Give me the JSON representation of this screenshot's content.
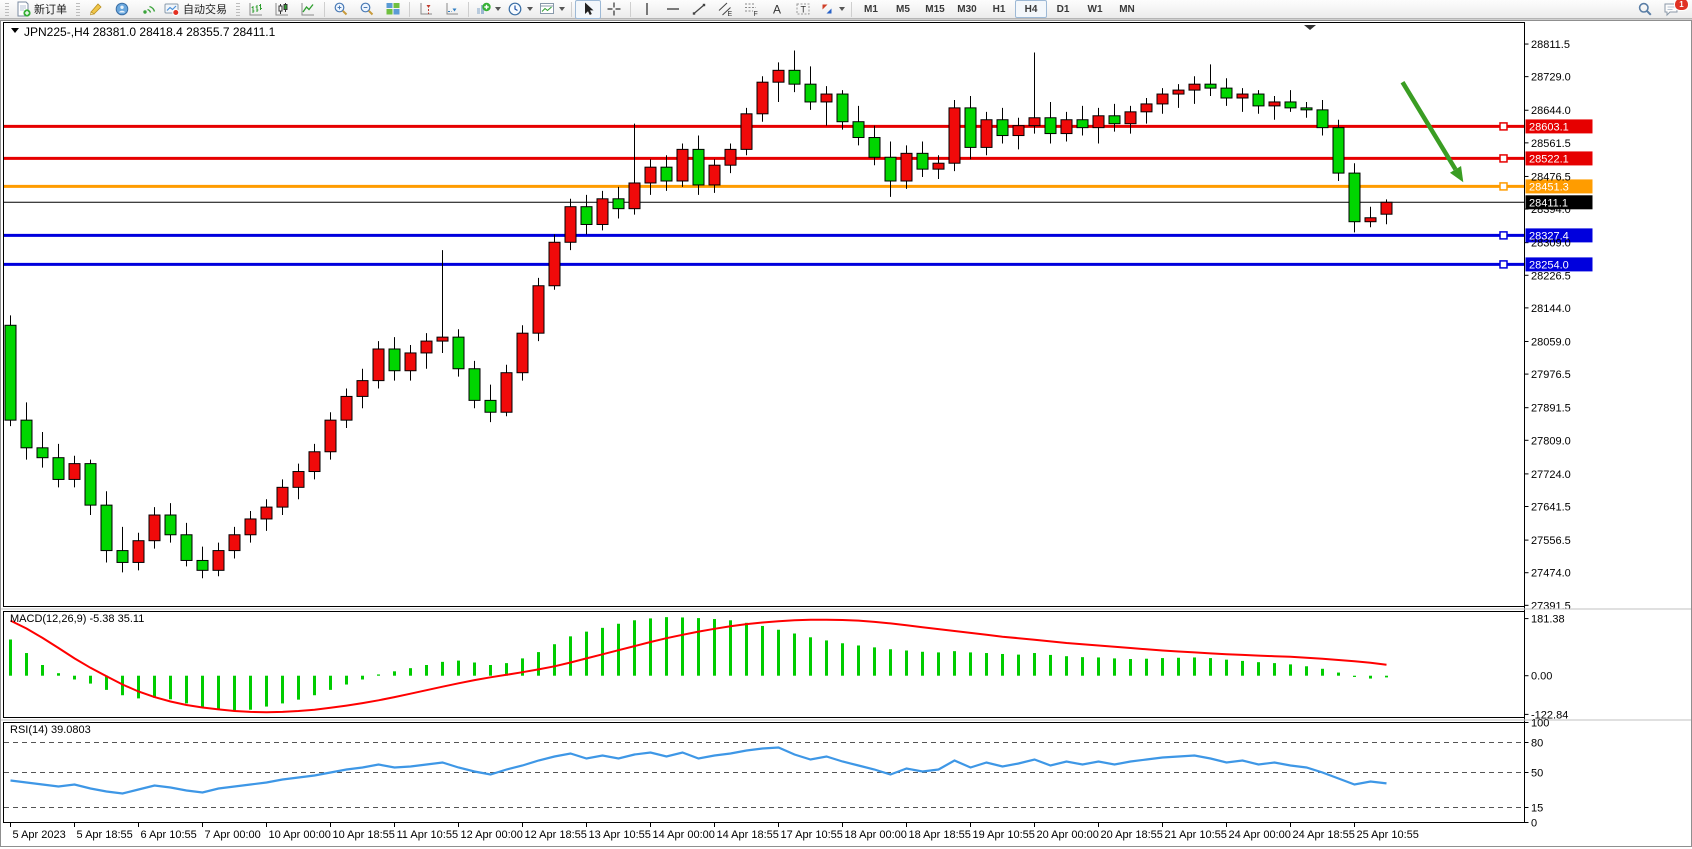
{
  "toolbar": {
    "new_order": "新订单",
    "autotrading": "自动交易",
    "timeframes": [
      "M1",
      "M5",
      "M15",
      "M30",
      "H1",
      "H4",
      "D1",
      "W1",
      "MN"
    ],
    "active_timeframe": "H4",
    "chat_badge": "1"
  },
  "chart_data": {
    "type": "candlestick",
    "symbol_period": "JPN225-,H4",
    "ohlc_label": "28381.0 28418.4 28355.7 28411.1",
    "current_bar": {
      "open": 28381.0,
      "high": 28418.4,
      "low": 28355.7,
      "close": 28411.1
    },
    "up_color": "#f00a0a",
    "down_color": "#00d600",
    "main_ylim": [
      27390.3,
      28862.2
    ],
    "price_ticks": [
      28811.5,
      28729.0,
      28644.0,
      28561.5,
      28476.5,
      28394.0,
      28309.0,
      28226.5,
      28144.0,
      28059.0,
      27976.5,
      27891.5,
      27809.0,
      27724.0,
      27641.5,
      27556.5,
      27474.0,
      27391.5
    ],
    "hlines": [
      {
        "price": 28603.1,
        "label": "28603.1",
        "color": "#e60000",
        "width": 3
      },
      {
        "price": 28522.1,
        "label": "28522.1",
        "color": "#e60000",
        "width": 3
      },
      {
        "price": 28451.3,
        "label": "28451.3",
        "color": "#ff9c00",
        "width": 3
      },
      {
        "price": 28411.1,
        "label": "28411.1",
        "color": "#000000",
        "width": 1
      },
      {
        "price": 28327.4,
        "label": "28327.4",
        "color": "#0000dd",
        "width": 3
      },
      {
        "price": 28254.0,
        "label": "28254.0",
        "color": "#0000dd",
        "width": 3
      }
    ],
    "time_labels": [
      "5 Apr 2023",
      "5 Apr 18:55",
      "6 Apr 10:55",
      "7 Apr 00:00",
      "10 Apr 00:00",
      "10 Apr 18:55",
      "11 Apr 10:55",
      "12 Apr 00:00",
      "12 Apr 18:55",
      "13 Apr 10:55",
      "14 Apr 00:00",
      "14 Apr 18:55",
      "17 Apr 10:55",
      "18 Apr 00:00",
      "18 Apr 18:55",
      "19 Apr 10:55",
      "20 Apr 00:00",
      "20 Apr 18:55",
      "21 Apr 10:55",
      "24 Apr 00:00",
      "24 Apr 18:55",
      "25 Apr 10:55"
    ],
    "bars_per_time_label": 4,
    "candles": [
      [
        28100,
        28125,
        27845,
        27860
      ],
      [
        27860,
        27905,
        27760,
        27790
      ],
      [
        27790,
        27830,
        27740,
        27765
      ],
      [
        27765,
        27800,
        27690,
        27710
      ],
      [
        27710,
        27770,
        27690,
        27750
      ],
      [
        27750,
        27760,
        27620,
        27645
      ],
      [
        27645,
        27680,
        27500,
        27530
      ],
      [
        27530,
        27590,
        27475,
        27500
      ],
      [
        27500,
        27575,
        27480,
        27555
      ],
      [
        27555,
        27640,
        27535,
        27620
      ],
      [
        27620,
        27650,
        27550,
        27570
      ],
      [
        27570,
        27600,
        27490,
        27505
      ],
      [
        27505,
        27540,
        27460,
        27480
      ],
      [
        27480,
        27550,
        27465,
        27530
      ],
      [
        27530,
        27590,
        27510,
        27570
      ],
      [
        27570,
        27630,
        27550,
        27610
      ],
      [
        27610,
        27660,
        27580,
        27640
      ],
      [
        27640,
        27710,
        27620,
        27690
      ],
      [
        27690,
        27750,
        27660,
        27730
      ],
      [
        27730,
        27800,
        27710,
        27780
      ],
      [
        27780,
        27880,
        27760,
        27860
      ],
      [
        27860,
        27940,
        27840,
        27920
      ],
      [
        27920,
        27990,
        27890,
        27960
      ],
      [
        27960,
        28060,
        27940,
        28040
      ],
      [
        28040,
        28070,
        27960,
        27985
      ],
      [
        27985,
        28050,
        27960,
        28030
      ],
      [
        28030,
        28080,
        27990,
        28060
      ],
      [
        28060,
        28290,
        28030,
        28070
      ],
      [
        28070,
        28090,
        27970,
        27990
      ],
      [
        27990,
        28010,
        27890,
        27910
      ],
      [
        27910,
        27950,
        27855,
        27880
      ],
      [
        27880,
        28000,
        27870,
        27980
      ],
      [
        27980,
        28100,
        27960,
        28080
      ],
      [
        28080,
        28220,
        28060,
        28200
      ],
      [
        28200,
        28330,
        28190,
        28310
      ],
      [
        28310,
        28420,
        28290,
        28400
      ],
      [
        28400,
        28430,
        28330,
        28355
      ],
      [
        28355,
        28440,
        28340,
        28420
      ],
      [
        28420,
        28450,
        28370,
        28395
      ],
      [
        28395,
        28610,
        28380,
        28460
      ],
      [
        28460,
        28520,
        28430,
        28500
      ],
      [
        28500,
        28530,
        28440,
        28465
      ],
      [
        28465,
        28560,
        28450,
        28545
      ],
      [
        28545,
        28580,
        28430,
        28455
      ],
      [
        28455,
        28520,
        28435,
        28505
      ],
      [
        28505,
        28560,
        28485,
        28545
      ],
      [
        28545,
        28650,
        28530,
        28635
      ],
      [
        28635,
        28730,
        28615,
        28715
      ],
      [
        28715,
        28765,
        28665,
        28745
      ],
      [
        28745,
        28795,
        28690,
        28710
      ],
      [
        28710,
        28755,
        28645,
        28665
      ],
      [
        28665,
        28705,
        28605,
        28685
      ],
      [
        28685,
        28695,
        28595,
        28615
      ],
      [
        28615,
        28655,
        28555,
        28575
      ],
      [
        28575,
        28605,
        28505,
        28525
      ],
      [
        28525,
        28565,
        28425,
        28465
      ],
      [
        28465,
        28555,
        28445,
        28535
      ],
      [
        28535,
        28565,
        28475,
        28495
      ],
      [
        28495,
        28530,
        28470,
        28510
      ],
      [
        28510,
        28670,
        28490,
        28650
      ],
      [
        28650,
        28680,
        28520,
        28550
      ],
      [
        28550,
        28640,
        28530,
        28620
      ],
      [
        28620,
        28650,
        28560,
        28580
      ],
      [
        28580,
        28625,
        28545,
        28605
      ],
      [
        28605,
        28790,
        28585,
        28625
      ],
      [
        28625,
        28665,
        28560,
        28585
      ],
      [
        28585,
        28640,
        28565,
        28620
      ],
      [
        28620,
        28655,
        28580,
        28600
      ],
      [
        28600,
        28650,
        28560,
        28630
      ],
      [
        28630,
        28660,
        28590,
        28610
      ],
      [
        28610,
        28655,
        28585,
        28640
      ],
      [
        28640,
        28675,
        28610,
        28660
      ],
      [
        28660,
        28700,
        28635,
        28685
      ],
      [
        28685,
        28710,
        28650,
        28695
      ],
      [
        28695,
        28730,
        28660,
        28710
      ],
      [
        28710,
        28760,
        28680,
        28700
      ],
      [
        28700,
        28725,
        28655,
        28675
      ],
      [
        28675,
        28700,
        28640,
        28685
      ],
      [
        28685,
        28695,
        28635,
        28655
      ],
      [
        28655,
        28680,
        28620,
        28665
      ],
      [
        28665,
        28695,
        28640,
        28650
      ],
      [
        28650,
        28665,
        28625,
        28645
      ],
      [
        28645,
        28670,
        28580,
        28600
      ],
      [
        28600,
        28620,
        28465,
        28485
      ],
      [
        28485,
        28510,
        28335,
        28362
      ],
      [
        28362,
        28400,
        28348,
        28372
      ],
      [
        28381,
        28418.4,
        28355.7,
        28411.1
      ]
    ],
    "macd": {
      "name": "MACD(12,26,9)",
      "values_label": "-5.38 35.11",
      "ylim": [
        -132.7,
        203.9
      ],
      "ticks": [
        {
          "v": 181.38,
          "label": "181.38"
        },
        {
          "v": 0,
          "label": "0.00"
        },
        {
          "v": -122.84,
          "label": "-122.84"
        }
      ],
      "histogram_color": "#00cc00",
      "signal_color": "#ff0000",
      "histogram": [
        115,
        72,
        34,
        8,
        -12,
        -25,
        -45,
        -62,
        -72,
        -70,
        -75,
        -88,
        -100,
        -108,
        -112,
        -108,
        -98,
        -88,
        -76,
        -62,
        -45,
        -28,
        -12,
        4,
        14,
        24,
        34,
        44,
        48,
        42,
        34,
        40,
        55,
        75,
        100,
        125,
        140,
        152,
        165,
        176,
        182,
        186,
        185,
        183,
        180,
        176,
        168,
        158,
        146,
        134,
        122,
        112,
        103,
        96,
        90,
        84,
        80,
        76,
        74,
        78,
        74,
        72,
        69,
        67,
        72,
        66,
        62,
        59,
        58,
        55,
        53,
        54,
        56,
        57,
        58,
        56,
        51,
        47,
        43,
        40,
        36,
        30,
        22,
        10,
        -4,
        -9,
        -5.38
      ],
      "signal": [
        175,
        150,
        120,
        88,
        55,
        25,
        -2,
        -28,
        -50,
        -68,
        -82,
        -93,
        -101,
        -107,
        -112,
        -115,
        -116,
        -115,
        -112,
        -108,
        -102,
        -95,
        -87,
        -78,
        -68,
        -57,
        -46,
        -35,
        -24,
        -14,
        -5,
        3,
        11,
        20,
        30,
        42,
        55,
        68,
        81,
        94,
        107,
        119,
        130,
        140,
        149,
        157,
        164,
        169,
        173,
        176,
        178,
        178,
        177,
        175,
        171,
        166,
        160,
        154,
        148,
        142,
        136,
        130,
        124,
        119,
        114,
        109,
        104,
        100,
        96,
        92,
        88,
        84,
        80,
        77,
        74,
        71,
        68,
        66,
        64,
        62,
        60,
        57,
        54,
        50,
        46,
        41,
        35.11
      ]
    },
    "rsi": {
      "name": "RSI(14)",
      "value_label": "39.0803",
      "ylim": [
        0,
        100
      ],
      "ticks": [
        {
          "v": 100,
          "label": "100"
        },
        {
          "v": 80,
          "label": "80"
        },
        {
          "v": 50,
          "label": "50"
        },
        {
          "v": 15,
          "label": "15"
        },
        {
          "v": 0,
          "label": "0"
        }
      ],
      "levels": [
        80,
        50,
        15
      ],
      "color": "#3E97E6",
      "values": [
        42,
        40,
        38,
        36,
        38,
        34,
        31,
        29,
        33,
        37,
        35,
        32,
        30,
        34,
        36,
        38,
        40,
        43,
        45,
        47,
        50,
        53,
        55,
        58,
        55,
        56,
        58,
        60,
        55,
        51,
        48,
        53,
        57,
        62,
        66,
        69,
        64,
        67,
        64,
        68,
        70,
        66,
        70,
        64,
        67,
        69,
        72,
        74,
        75,
        68,
        63,
        66,
        61,
        57,
        53,
        48,
        54,
        51,
        53,
        62,
        55,
        60,
        56,
        59,
        63,
        57,
        61,
        58,
        61,
        58,
        61,
        63,
        65,
        66,
        67,
        64,
        60,
        62,
        58,
        60,
        57,
        55,
        50,
        44,
        38,
        41,
        39.08
      ]
    },
    "arrow_annotation": {
      "color": "#3a9d23",
      "from": {
        "bar": 87.0,
        "price": 28715
      },
      "to": {
        "bar": 90.8,
        "price": 28462
      }
    }
  }
}
